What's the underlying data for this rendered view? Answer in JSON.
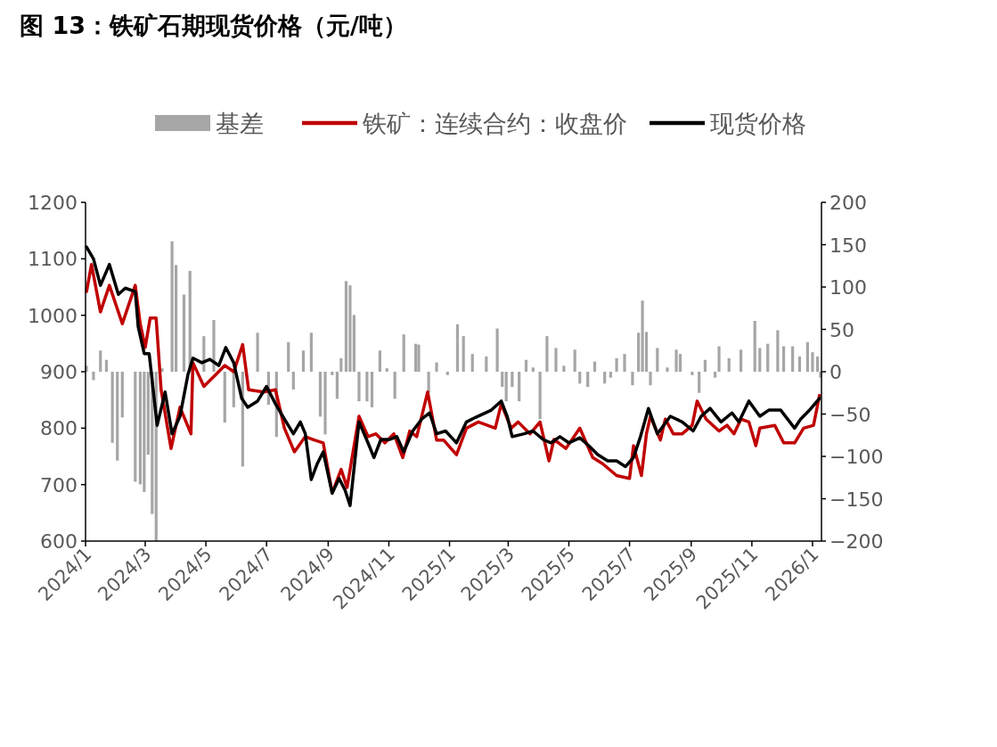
{
  "chart_data": {
    "type": "line",
    "title": "图 13：铁矿石期现货价格（元/吨）",
    "legend": "top",
    "grid": false,
    "xlim": [
      "2024-01-01",
      "2026-01-10"
    ],
    "xticks": [
      {
        "value": "2024-01-01",
        "label": "2024/1"
      },
      {
        "value": "2024-03-01",
        "label": "2024/3"
      },
      {
        "value": "2024-05-01",
        "label": "2024/5"
      },
      {
        "value": "2024-07-01",
        "label": "2024/7"
      },
      {
        "value": "2024-09-01",
        "label": "2024/9"
      },
      {
        "value": "2024-11-01",
        "label": "2024/11"
      },
      {
        "value": "2025-01-01",
        "label": "2025/1"
      },
      {
        "value": "2025-03-01",
        "label": "2025/3"
      },
      {
        "value": "2025-05-01",
        "label": "2025/5"
      },
      {
        "value": "2025-07-01",
        "label": "2025/7"
      },
      {
        "value": "2025-09-01",
        "label": "2025/9"
      },
      {
        "value": "2025-11-01",
        "label": "2025/11"
      },
      {
        "value": "2026-01-01",
        "label": "2026/1"
      }
    ],
    "ylim": [
      600,
      1200
    ],
    "yticks": [
      600,
      700,
      800,
      900,
      1000,
      1100,
      1200
    ],
    "y2lim": [
      -200,
      200
    ],
    "y2ticks": [
      {
        "value": -200,
        "label": "−200"
      },
      {
        "value": -150,
        "label": "−150"
      },
      {
        "value": -100,
        "label": "−100"
      },
      {
        "value": -50,
        "label": "−50"
      },
      0,
      50,
      100,
      150,
      200
    ],
    "series": [
      {
        "name": "基差",
        "type": "bar",
        "axis": "y2",
        "color": "#a6a6a6",
        "x": [
          "2024-01-02",
          "2024-01-09",
          "2024-01-16",
          "2024-01-22",
          "2024-01-28",
          "2024-02-02",
          "2024-02-07",
          "2024-02-20",
          "2024-02-25",
          "2024-02-29",
          "2024-03-04",
          "2024-03-08",
          "2024-03-12",
          "2024-03-18",
          "2024-03-28",
          "2024-04-01",
          "2024-04-09",
          "2024-04-15",
          "2024-04-29",
          "2024-05-09",
          "2024-05-20",
          "2024-05-29",
          "2024-06-07",
          "2024-06-22",
          "2024-07-03",
          "2024-07-11",
          "2024-07-23",
          "2024-07-28",
          "2024-08-07",
          "2024-08-15",
          "2024-08-24",
          "2024-08-29",
          "2024-09-05",
          "2024-09-10",
          "2024-09-14",
          "2024-09-19",
          "2024-09-23",
          "2024-09-27",
          "2024-10-02",
          "2024-10-10",
          "2024-10-15",
          "2024-10-23",
          "2024-10-30",
          "2024-11-07",
          "2024-11-16",
          "2024-11-28",
          "2024-12-01",
          "2024-12-11",
          "2024-12-19",
          "2024-12-30",
          "2025-01-09",
          "2025-01-15",
          "2025-01-24",
          "2025-02-07",
          "2025-02-18",
          "2025-02-23",
          "2025-02-27",
          "2025-03-05",
          "2025-03-12",
          "2025-03-19",
          "2025-03-26",
          "2025-04-02",
          "2025-04-09",
          "2025-04-18",
          "2025-04-26",
          "2025-05-07",
          "2025-05-12",
          "2025-05-20",
          "2025-05-27",
          "2025-06-06",
          "2025-06-12",
          "2025-06-18",
          "2025-06-26",
          "2025-07-04",
          "2025-07-10",
          "2025-07-14",
          "2025-07-18",
          "2025-07-22",
          "2025-07-29",
          "2025-08-08",
          "2025-08-17",
          "2025-08-21",
          "2025-09-02",
          "2025-09-09",
          "2025-09-15",
          "2025-09-25",
          "2025-09-29",
          "2025-10-09",
          "2025-10-21",
          "2025-11-04",
          "2025-11-09",
          "2025-11-17",
          "2025-11-27",
          "2025-12-03",
          "2025-12-12",
          "2025-12-19",
          "2025-12-27",
          "2026-01-01",
          "2026-01-06",
          "2026-01-09"
        ],
        "values": [
          7,
          -10,
          25,
          14,
          -84,
          -105,
          -54,
          -130,
          -133,
          -142,
          -98,
          -168,
          -200,
          4,
          154,
          126,
          91,
          119,
          42,
          61,
          -60,
          -42,
          -112,
          46,
          -39,
          -77,
          35,
          -21,
          25,
          46,
          -53,
          -74,
          -4,
          -32,
          16,
          107,
          102,
          67,
          -35,
          -35,
          -42,
          25,
          4,
          -32,
          44,
          33,
          32,
          -25,
          11,
          -4,
          56,
          42,
          21,
          18,
          51,
          -18,
          -35,
          -18,
          -35,
          14,
          5,
          -56,
          42,
          28,
          7,
          26,
          -14,
          -18,
          12,
          -14,
          -7,
          16,
          21,
          -16,
          46,
          84,
          47,
          -16,
          28,
          5,
          26,
          21,
          -4,
          -25,
          14,
          -7,
          30,
          16,
          26,
          60,
          28,
          33,
          49,
          30,
          30,
          18,
          35,
          23,
          18,
          -7
        ]
      },
      {
        "name": "铁矿：连续合约：收盘价",
        "color": "#c00000",
        "x": [
          "2024-01-02",
          "2024-01-07",
          "2024-01-16",
          "2024-01-25",
          "2024-02-07",
          "2024-02-20",
          "2024-02-25",
          "2024-03-01",
          "2024-03-06",
          "2024-03-12",
          "2024-03-17",
          "2024-03-27",
          "2024-04-05",
          "2024-04-16",
          "2024-04-18",
          "2024-04-29",
          "2024-05-11",
          "2024-05-20",
          "2024-05-29",
          "2024-06-07",
          "2024-06-13",
          "2024-06-28",
          "2024-07-10",
          "2024-07-19",
          "2024-07-29",
          "2024-08-09",
          "2024-08-18",
          "2024-08-27",
          "2024-09-05",
          "2024-09-14",
          "2024-09-20",
          "2024-10-02",
          "2024-10-11",
          "2024-10-19",
          "2024-10-28",
          "2024-11-06",
          "2024-11-15",
          "2024-11-22",
          "2024-11-29",
          "2024-12-10",
          "2024-12-19",
          "2024-12-26",
          "2025-01-08",
          "2025-01-18",
          "2025-01-30",
          "2025-02-16",
          "2025-02-22",
          "2025-03-04",
          "2025-03-11",
          "2025-03-23",
          "2025-04-02",
          "2025-04-11",
          "2025-04-16",
          "2025-04-28",
          "2025-05-12",
          "2025-05-25",
          "2025-06-04",
          "2025-06-18",
          "2025-07-01",
          "2025-07-05",
          "2025-07-13",
          "2025-07-18",
          "2025-07-22",
          "2025-08-01",
          "2025-08-06",
          "2025-08-14",
          "2025-08-23",
          "2025-09-02",
          "2025-09-07",
          "2025-09-16",
          "2025-09-29",
          "2025-10-07",
          "2025-10-14",
          "2025-10-21",
          "2025-10-29",
          "2025-11-05",
          "2025-11-09",
          "2025-11-24",
          "2025-12-03",
          "2025-12-14",
          "2025-12-23",
          "2026-01-02",
          "2026-01-08"
        ],
        "values": [
          1042,
          1090,
          1006,
          1053,
          985,
          1053,
          985,
          943,
          995,
          995,
          868,
          764,
          837,
          790,
          916,
          874,
          895,
          911,
          900,
          948,
          868,
          864,
          868,
          800,
          758,
          785,
          779,
          774,
          685,
          727,
          695,
          821,
          785,
          790,
          774,
          790,
          748,
          795,
          785,
          864,
          779,
          779,
          753,
          800,
          811,
          800,
          843,
          800,
          811,
          790,
          811,
          742,
          780,
          764,
          800,
          748,
          737,
          716,
          711,
          769,
          716,
          790,
          821,
          779,
          816,
          790,
          790,
          805,
          848,
          816,
          795,
          805,
          790,
          816,
          811,
          769,
          800,
          805,
          774,
          774,
          800,
          805,
          858
        ]
      },
      {
        "name": "现货价格",
        "color": "#000000",
        "x": [
          "2024-01-02",
          "2024-01-09",
          "2024-01-16",
          "2024-01-25",
          "2024-02-03",
          "2024-02-10",
          "2024-02-20",
          "2024-02-23",
          "2024-02-29",
          "2024-03-05",
          "2024-03-13",
          "2024-03-21",
          "2024-03-28",
          "2024-04-05",
          "2024-04-13",
          "2024-04-18",
          "2024-04-27",
          "2024-05-05",
          "2024-05-14",
          "2024-05-21",
          "2024-05-29",
          "2024-06-06",
          "2024-06-12",
          "2024-06-22",
          "2024-07-01",
          "2024-07-10",
          "2024-07-19",
          "2024-07-28",
          "2024-08-04",
          "2024-08-09",
          "2024-08-15",
          "2024-08-21",
          "2024-08-27",
          "2024-09-05",
          "2024-09-12",
          "2024-09-18",
          "2024-09-23",
          "2024-10-02",
          "2024-10-11",
          "2024-10-17",
          "2024-10-24",
          "2024-11-02",
          "2024-11-09",
          "2024-11-16",
          "2024-11-25",
          "2024-12-04",
          "2024-12-12",
          "2024-12-19",
          "2024-12-28",
          "2025-01-08",
          "2025-01-18",
          "2025-01-27",
          "2025-02-12",
          "2025-02-22",
          "2025-02-28",
          "2025-03-05",
          "2025-03-17",
          "2025-03-26",
          "2025-04-05",
          "2025-04-13",
          "2025-04-22",
          "2025-05-01",
          "2025-05-12",
          "2025-05-21",
          "2025-05-30",
          "2025-06-09",
          "2025-06-18",
          "2025-06-27",
          "2025-07-05",
          "2025-07-12",
          "2025-07-20",
          "2025-07-29",
          "2025-08-11",
          "2025-08-23",
          "2025-09-03",
          "2025-09-11",
          "2025-09-20",
          "2025-10-01",
          "2025-10-12",
          "2025-10-19",
          "2025-10-29",
          "2025-11-09",
          "2025-11-18",
          "2025-11-30",
          "2025-12-14",
          "2025-12-20",
          "2025-12-29",
          "2026-01-08"
        ],
        "values": [
          1121,
          1100,
          1053,
          1090,
          1037,
          1048,
          1042,
          979,
          932,
          932,
          805,
          864,
          790,
          821,
          895,
          924,
          916,
          922,
          911,
          943,
          916,
          853,
          837,
          848,
          874,
          843,
          816,
          790,
          811,
          790,
          709,
          737,
          758,
          685,
          711,
          690,
          663,
          811,
          774,
          748,
          780,
          780,
          785,
          758,
          795,
          816,
          827,
          790,
          795,
          774,
          811,
          819,
          832,
          848,
          821,
          785,
          790,
          795,
          780,
          774,
          785,
          774,
          783,
          769,
          753,
          742,
          742,
          732,
          748,
          785,
          835,
          790,
          821,
          811,
          795,
          821,
          835,
          811,
          827,
          811,
          848,
          821,
          832,
          832,
          800,
          816,
          832,
          853
        ]
      }
    ]
  }
}
